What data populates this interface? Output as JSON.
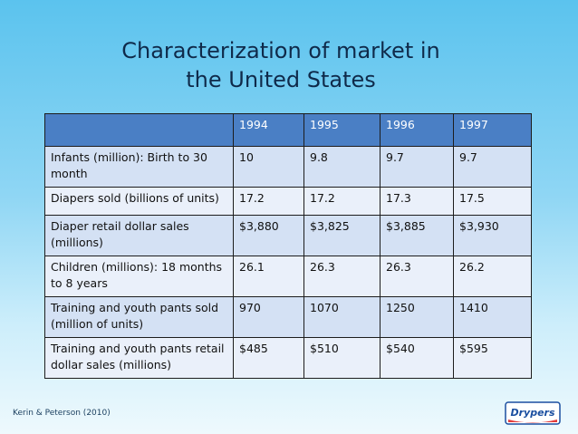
{
  "title": "Characterization of market in the United States",
  "title_line1": "Characterization of market in",
  "title_line2": "the United States",
  "table": {
    "headers": [
      "",
      "1994",
      "1995",
      "1996",
      "1997"
    ],
    "rows": [
      {
        "label": "Infants (million): Birth to 30 month",
        "values": [
          "10",
          "9.8",
          "9.7",
          "9.7"
        ]
      },
      {
        "label": "Diapers sold (billions of units)",
        "values": [
          "17.2",
          "17.2",
          "17.3",
          "17.5"
        ]
      },
      {
        "label": "Diaper retail dollar sales (millions)",
        "values": [
          "$3,880",
          "$3,825",
          "$3,885",
          "$3,930"
        ]
      },
      {
        "label": "Children (millions): 18 months to 8 years",
        "values": [
          "26.1",
          "26.3",
          "26.3",
          "26.2"
        ]
      },
      {
        "label": "Training and youth pants sold (million of units)",
        "values": [
          "970",
          "1070",
          "1250",
          "1410"
        ]
      },
      {
        "label": "Training and youth pants retail dollar sales (millions)",
        "values": [
          "$485",
          "$510",
          "$540",
          "$595"
        ]
      }
    ]
  },
  "credit": "Kerin & Peterson (2010)",
  "logo": {
    "text": "Drypers",
    "icon": "drypers-logo"
  },
  "colors": {
    "header": "#4a7fc5",
    "row_dark": "#d4e1f4",
    "row_light": "#eaf0fa",
    "title": "#0f2a4a"
  }
}
